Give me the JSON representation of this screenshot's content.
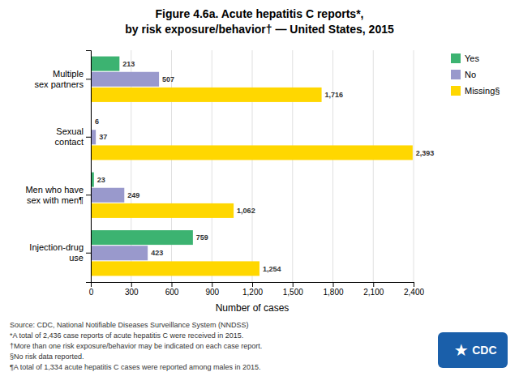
{
  "chart_data": {
    "type": "bar",
    "orientation": "horizontal",
    "title": "Figure 4.6a. Acute hepatitis C reports*,",
    "subtitle": "by risk exposure/behavior† — United States, 2015",
    "categories": [
      "Injection-drug\nuse",
      "Men who have\nsex with men¶",
      "Sexual\ncontact",
      "Multiple\nsex partners"
    ],
    "series": [
      {
        "name": "Yes",
        "color": "#3CB371",
        "values": [
          759,
          23,
          6,
          213
        ],
        "value_labels": [
          "759",
          "23",
          "6",
          "213"
        ]
      },
      {
        "name": "No",
        "color": "#9999CC",
        "values": [
          423,
          249,
          37,
          507
        ],
        "value_labels": [
          "423",
          "249",
          "37",
          "507"
        ]
      },
      {
        "name": "Missing§",
        "color": "#FFD700",
        "values": [
          1254,
          1062,
          2393,
          1716
        ],
        "value_labels": [
          "1,254",
          "1,062",
          "2,393",
          "1,716"
        ]
      }
    ],
    "data_labels": true,
    "xlim": [
      0,
      2400
    ],
    "xticks": [
      0,
      300,
      600,
      900,
      {
        "value": 1200,
        "label": "1,200"
      },
      {
        "value": 1500,
        "label": "1,500"
      },
      {
        "value": 1800,
        "label": "1,800"
      },
      {
        "value": 2100,
        "label": "2,100"
      },
      {
        "value": 2400,
        "label": "2,400"
      }
    ],
    "xlabel": "Number of cases",
    "grid": true,
    "legend": "right",
    "annotations": [
      "Source: CDC,  National Notifiable Diseases Surveillance System (NNDSS)",
      "*A total of 2,436 case reports of acute hepatitis C were received in 2015.",
      "†More than one risk exposure/behavior may be indicated on each case report.",
      "§No risk data reported.",
      "¶A total of 1,334 acute hepatitis C cases were reported among males in 2015."
    ],
    "badge": [
      "★",
      "CDC"
    ]
  }
}
